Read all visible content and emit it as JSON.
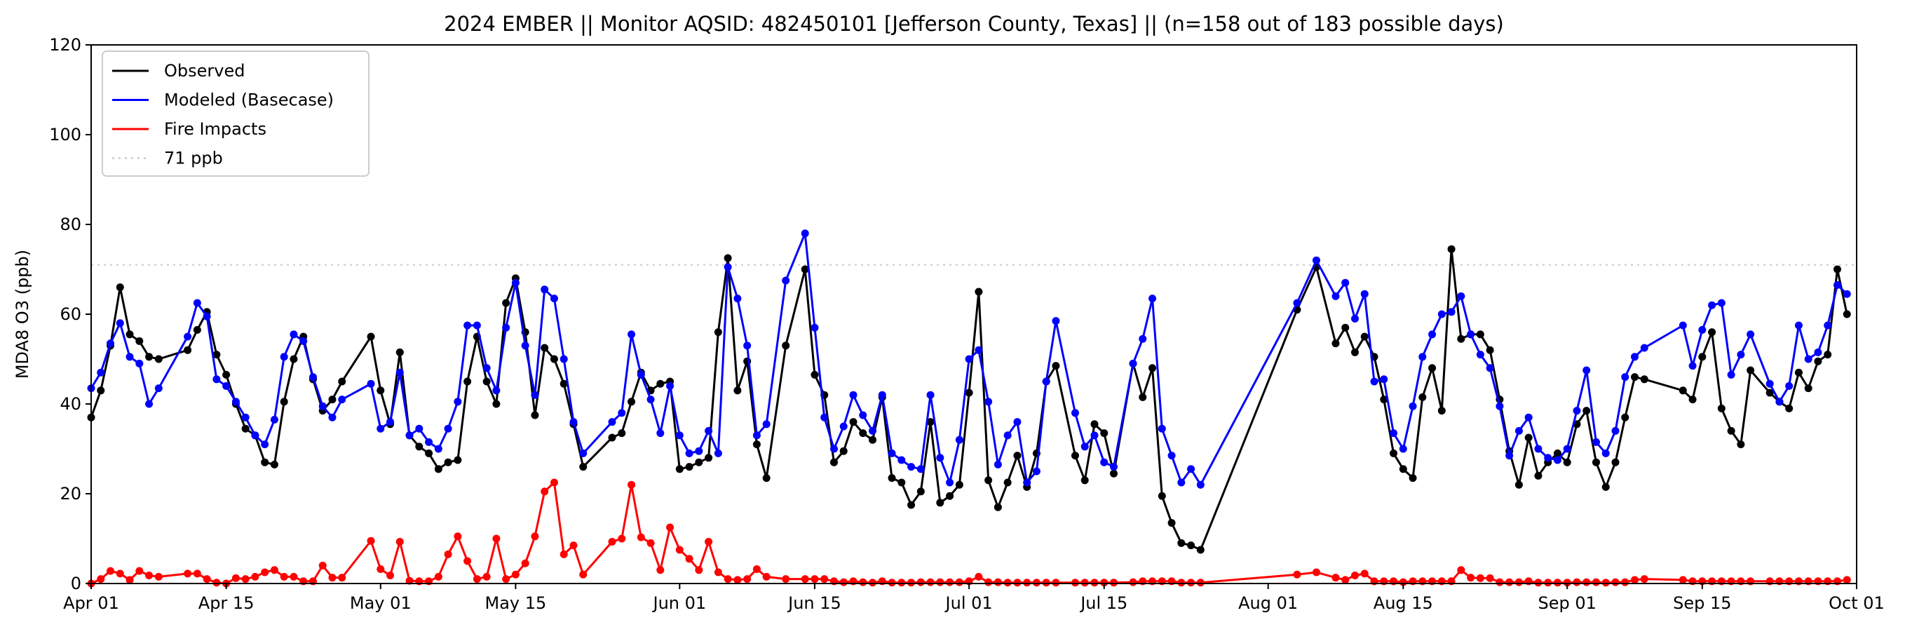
{
  "chart_data": {
    "type": "line",
    "title": "2024 EMBER || Monitor AQSID: 482450101 [Jefferson County, Texas] || (n=158 out of 183 possible days)",
    "xlabel": "",
    "ylabel": "MDA8 O3 (ppb)",
    "x_unit": "days since Apr 01 2024",
    "xlim": [
      0,
      183
    ],
    "ylim": [
      0,
      120
    ],
    "yticks": [
      0,
      20,
      40,
      60,
      80,
      100,
      120
    ],
    "xticks": [
      {
        "day": 0,
        "label": "Apr 01"
      },
      {
        "day": 14,
        "label": "Apr 15"
      },
      {
        "day": 30,
        "label": "May 01"
      },
      {
        "day": 44,
        "label": "May 15"
      },
      {
        "day": 61,
        "label": "Jun 01"
      },
      {
        "day": 75,
        "label": "Jun 15"
      },
      {
        "day": 91,
        "label": "Jul 01"
      },
      {
        "day": 105,
        "label": "Jul 15"
      },
      {
        "day": 122,
        "label": "Aug 01"
      },
      {
        "day": 136,
        "label": "Aug 15"
      },
      {
        "day": 153,
        "label": "Sep 01"
      },
      {
        "day": 167,
        "label": "Sep 15"
      },
      {
        "day": 183,
        "label": "Oct 01"
      }
    ],
    "grid": false,
    "legend_position": "top-left",
    "reference_line": {
      "name": "71 ppb",
      "value": 71,
      "color": "#d3d3d3"
    },
    "x": [
      0,
      1,
      2,
      3,
      4,
      5,
      6,
      7,
      10,
      11,
      12,
      13,
      14,
      15,
      16,
      17,
      18,
      19,
      20,
      21,
      22,
      23,
      24,
      25,
      26,
      29,
      30,
      31,
      32,
      33,
      34,
      35,
      36,
      37,
      38,
      39,
      40,
      41,
      42,
      43,
      44,
      45,
      46,
      47,
      48,
      49,
      50,
      51,
      54,
      55,
      56,
      57,
      58,
      59,
      60,
      61,
      62,
      63,
      64,
      65,
      66,
      67,
      68,
      69,
      70,
      72,
      74,
      75,
      76,
      77,
      78,
      79,
      80,
      81,
      82,
      83,
      84,
      85,
      86,
      87,
      88,
      89,
      90,
      91,
      92,
      93,
      94,
      95,
      96,
      97,
      98,
      99,
      100,
      102,
      103,
      104,
      105,
      106,
      108,
      109,
      110,
      111,
      112,
      113,
      114,
      115,
      125,
      127,
      129,
      130,
      131,
      132,
      133,
      134,
      135,
      136,
      137,
      138,
      139,
      140,
      141,
      142,
      143,
      144,
      145,
      146,
      147,
      148,
      149,
      150,
      151,
      152,
      153,
      154,
      155,
      156,
      157,
      158,
      159,
      160,
      161,
      165,
      166,
      167,
      168,
      169,
      170,
      171,
      172,
      174,
      175,
      176,
      177,
      178,
      179,
      180,
      181,
      182
    ],
    "series": [
      {
        "name": "Observed",
        "color": "#000000",
        "values": [
          37,
          43,
          53,
          66,
          55.5,
          54,
          50.5,
          50,
          52,
          56.5,
          60.5,
          51,
          46.5,
          40,
          34.5,
          33,
          27,
          26.5,
          40.5,
          50,
          55,
          45.5,
          38.5,
          41,
          45,
          55,
          43,
          35.5,
          51.5,
          33,
          30.5,
          29,
          25.5,
          27,
          27.5,
          45,
          55,
          45,
          40,
          62.5,
          68,
          56,
          37.5,
          52.5,
          50,
          44.5,
          35.5,
          26,
          32.5,
          33.5,
          40.5,
          47,
          43,
          44.5,
          45,
          25.5,
          26,
          27,
          28,
          56,
          72.5,
          43,
          49.5,
          31,
          23.5,
          53,
          70,
          46.5,
          42,
          27,
          29.5,
          36,
          33.5,
          32,
          41.5,
          23.5,
          22.5,
          17.5,
          20.5,
          36,
          18,
          19.5,
          22,
          42.5,
          65,
          23,
          17,
          22.5,
          28.5,
          21.5,
          29,
          45,
          48.5,
          28.5,
          23,
          35.5,
          33.5,
          24.5,
          49,
          41.5,
          48,
          19.5,
          13.5,
          9,
          8.5,
          7.5,
          61,
          70.5,
          53.5,
          57,
          51.5,
          55,
          50.5,
          41,
          29,
          25.5,
          23.5,
          41.5,
          48,
          38.5,
          74.5,
          54.5,
          55.5,
          55.5,
          52,
          41,
          29.5,
          22,
          32.5,
          24,
          27,
          29,
          27,
          35.5,
          38.5,
          27,
          21.5,
          27,
          37,
          46,
          45.5,
          43,
          41,
          50.5,
          56,
          39,
          34,
          31,
          47.5,
          42.5,
          40.5,
          39,
          47,
          43.5,
          49.5,
          51,
          70,
          60
        ]
      },
      {
        "name": "Modeled (Basecase)",
        "color": "#0000ff",
        "values": [
          43.5,
          47,
          53.5,
          58,
          50.5,
          49,
          40,
          43.5,
          55,
          62.5,
          59.5,
          45.5,
          44,
          40.5,
          37,
          33,
          31,
          36.5,
          50.5,
          55.5,
          54,
          46,
          39.5,
          37,
          41,
          44.5,
          34.5,
          36,
          47,
          33,
          34.5,
          31.5,
          30,
          34.5,
          40.5,
          57.5,
          57.5,
          48,
          43,
          57,
          67,
          53,
          42,
          65.5,
          63.5,
          50,
          36,
          29,
          36,
          38,
          55.5,
          46.5,
          41,
          33.5,
          44,
          33,
          29,
          29.5,
          34,
          29,
          70.5,
          63.5,
          53,
          33,
          35.5,
          67.5,
          78,
          57,
          37,
          30,
          35,
          42,
          37.5,
          34,
          42,
          29,
          27.5,
          26,
          25.5,
          42,
          28,
          22.5,
          32,
          50,
          52,
          40.5,
          26.5,
          33,
          36,
          22.5,
          25,
          45,
          58.5,
          38,
          30.5,
          33,
          27,
          26,
          49,
          54.5,
          63.5,
          34.5,
          28.5,
          22.5,
          25.5,
          22,
          62.5,
          72,
          64,
          67,
          59,
          64.5,
          45,
          45.5,
          33.5,
          30,
          39.5,
          50.5,
          55.5,
          60,
          60.5,
          64,
          55.5,
          51,
          48,
          39.5,
          28.5,
          34,
          37,
          30,
          28,
          27.5,
          30,
          38.5,
          47.5,
          31.5,
          29,
          34,
          46,
          50.5,
          52.5,
          57.5,
          48.5,
          56.5,
          62,
          62.5,
          46.5,
          51,
          55.5,
          44.5,
          40.5,
          44,
          57.5,
          50,
          51.5,
          57.5,
          66.5,
          64.5
        ]
      },
      {
        "name": "Fire Impacts",
        "color": "#ff0000",
        "values": [
          0,
          1,
          2.8,
          2.2,
          0.8,
          2.8,
          1.8,
          1.5,
          2.2,
          2.2,
          1,
          0.2,
          0,
          1.2,
          1,
          1.5,
          2.5,
          3,
          1.5,
          1.5,
          0.5,
          0.5,
          4,
          1.3,
          1.3,
          9.5,
          3.2,
          1.8,
          9.3,
          0.6,
          0.5,
          0.5,
          1.5,
          6.5,
          10.5,
          5,
          1,
          1.5,
          10,
          1,
          2,
          4.5,
          10.5,
          20.5,
          22.5,
          6.5,
          8.5,
          2,
          9.3,
          10,
          22,
          10.3,
          9,
          3,
          12.5,
          7.5,
          5.5,
          3,
          9.3,
          2.5,
          1,
          0.8,
          1,
          3.2,
          1.5,
          1,
          1,
          1,
          1,
          0.5,
          0.3,
          0.5,
          0.3,
          0.2,
          0.5,
          0.2,
          0.2,
          0.2,
          0.3,
          0.3,
          0.3,
          0.3,
          0.3,
          0.5,
          1.5,
          0.3,
          0.3,
          0.2,
          0.2,
          0.2,
          0.2,
          0.2,
          0.2,
          0.2,
          0.2,
          0.2,
          0.2,
          0.2,
          0.3,
          0.5,
          0.5,
          0.5,
          0.5,
          0.2,
          0.2,
          0.2,
          2,
          2.5,
          1.3,
          0.8,
          1.8,
          2.2,
          0.5,
          0.5,
          0.5,
          0.3,
          0.5,
          0.5,
          0.5,
          0.5,
          0.5,
          3,
          1.3,
          1.2,
          1.2,
          0.3,
          0.3,
          0.3,
          0.5,
          0.2,
          0.2,
          0.2,
          0.2,
          0.3,
          0.3,
          0.3,
          0.2,
          0.3,
          0.3,
          0.8,
          1,
          0.8,
          0.5,
          0.5,
          0.5,
          0.5,
          0.5,
          0.5,
          0.5,
          0.5,
          0.5,
          0.5,
          0.5,
          0.5,
          0.5,
          0.5,
          0.5,
          0.8
        ]
      }
    ]
  }
}
